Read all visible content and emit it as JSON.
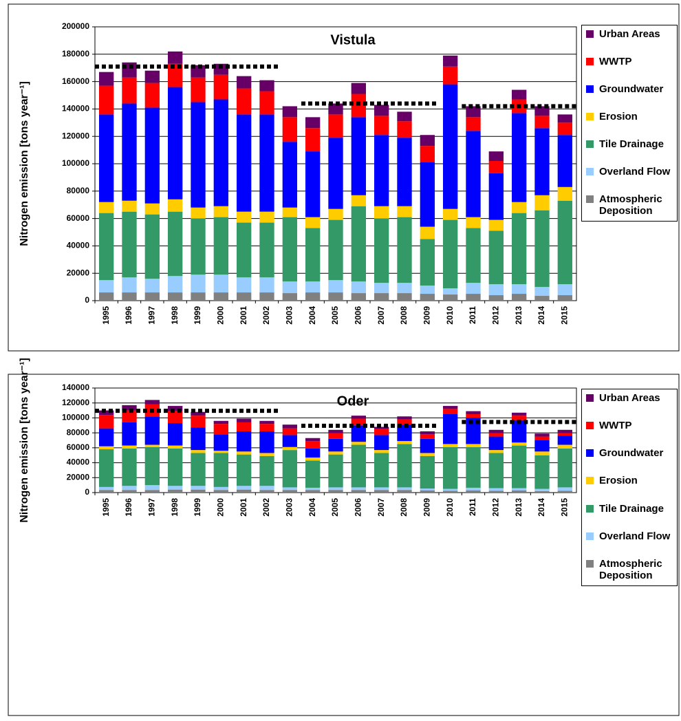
{
  "chart_data": [
    {
      "type": "bar",
      "stacked": true,
      "title": "Vistula",
      "y_label": "Nitrogen emission [tons year⁻¹]",
      "categories": [
        "1995",
        "1996",
        "1997",
        "1998",
        "1999",
        "2000",
        "2001",
        "2002",
        "2003",
        "2004",
        "2005",
        "2006",
        "2007",
        "2008",
        "2009",
        "2010",
        "2011",
        "2012",
        "2013",
        "2014",
        "2015"
      ],
      "ylim": [
        0,
        200000
      ],
      "yticks": [
        0,
        20000,
        40000,
        60000,
        80000,
        100000,
        120000,
        140000,
        160000,
        180000,
        200000
      ],
      "grid": true,
      "series": [
        {
          "name": "Atmospheric Deposition",
          "color": "#808080",
          "values": [
            6000,
            6000,
            6000,
            6000,
            6000,
            6000,
            6000,
            6000,
            5500,
            6000,
            6000,
            5500,
            5500,
            5500,
            5000,
            4500,
            5000,
            4000,
            5000,
            3500,
            4000
          ]
        },
        {
          "name": "Overland Flow",
          "color": "#99ccff",
          "values": [
            9000,
            11000,
            10000,
            12000,
            13000,
            13000,
            11000,
            11000,
            8500,
            8000,
            9000,
            8500,
            7500,
            7500,
            6000,
            4500,
            8000,
            8000,
            7000,
            6500,
            8000
          ]
        },
        {
          "name": "Tile Drainage",
          "color": "#339966",
          "values": [
            49000,
            48000,
            47000,
            47000,
            41000,
            42000,
            40000,
            40000,
            47000,
            39000,
            44000,
            55000,
            47000,
            48000,
            34000,
            50000,
            40000,
            39000,
            52000,
            56000,
            61000
          ]
        },
        {
          "name": "Erosion",
          "color": "#ffcc00",
          "values": [
            8000,
            8000,
            8000,
            9000,
            8000,
            8000,
            8000,
            8000,
            7000,
            8000,
            8000,
            8000,
            9000,
            8000,
            9000,
            8000,
            8000,
            8000,
            8000,
            11000,
            10000
          ]
        },
        {
          "name": "Groundwater",
          "color": "#0000ff",
          "values": [
            64000,
            71000,
            70000,
            82000,
            77000,
            78000,
            71000,
            71000,
            48000,
            48000,
            52000,
            57000,
            52000,
            50000,
            47000,
            91000,
            63000,
            34000,
            65000,
            49000,
            38000
          ]
        },
        {
          "name": "WWTP",
          "color": "#ff0000",
          "values": [
            21000,
            19000,
            18000,
            17000,
            18000,
            18000,
            19000,
            17000,
            18000,
            17000,
            17000,
            17000,
            14000,
            12000,
            12000,
            13000,
            10000,
            9000,
            10000,
            9000,
            9000
          ]
        },
        {
          "name": "Urban Areas",
          "color": "#660066",
          "values": [
            10000,
            11000,
            9000,
            9000,
            9000,
            8000,
            9000,
            8000,
            8000,
            8000,
            8000,
            8000,
            8000,
            7000,
            8000,
            8000,
            8000,
            7000,
            7000,
            7000,
            6000
          ]
        }
      ],
      "mean_line": {
        "color": "#000000",
        "values": [
          171000,
          171000,
          171000,
          171000,
          171000,
          171000,
          171000,
          171000,
          null,
          144000,
          144000,
          144000,
          144000,
          144000,
          144000,
          null,
          142000,
          142000,
          142000,
          142000,
          142000
        ]
      }
    },
    {
      "type": "bar",
      "stacked": true,
      "title": "Oder",
      "y_label": "Nitrogen emission [tons year⁻¹]",
      "categories": [
        "1995",
        "1996",
        "1997",
        "1998",
        "1999",
        "2000",
        "2001",
        "2002",
        "2003",
        "2004",
        "2005",
        "2006",
        "2007",
        "2008",
        "2009",
        "2010",
        "2011",
        "2012",
        "2013",
        "2014",
        "2015"
      ],
      "ylim": [
        0,
        140000
      ],
      "yticks": [
        0,
        20000,
        40000,
        60000,
        80000,
        100000,
        120000,
        140000
      ],
      "grid": true,
      "series": [
        {
          "name": "Atmospheric Deposition",
          "color": "#808080",
          "values": [
            3500,
            3500,
            3500,
            4000,
            4000,
            3500,
            4000,
            3500,
            3500,
            3500,
            3500,
            3500,
            3500,
            3500,
            3000,
            2500,
            3000,
            2500,
            3000,
            2000,
            2500
          ]
        },
        {
          "name": "Overland Flow",
          "color": "#99ccff",
          "values": [
            4000,
            5500,
            6500,
            5000,
            5000,
            4000,
            5000,
            5500,
            3500,
            3000,
            3500,
            3500,
            3500,
            3500,
            2500,
            2500,
            3500,
            3500,
            3000,
            3000,
            4500
          ]
        },
        {
          "name": "Tile Drainage",
          "color": "#339966",
          "values": [
            50500,
            50000,
            51000,
            50000,
            44000,
            45500,
            42000,
            40000,
            50000,
            36500,
            44000,
            57000,
            46000,
            58000,
            43500,
            56000,
            54500,
            47000,
            57000,
            45000,
            52000
          ]
        },
        {
          "name": "Erosion",
          "color": "#ffcc00",
          "values": [
            4000,
            4000,
            3000,
            4000,
            4000,
            3000,
            4000,
            4000,
            4000,
            4000,
            4000,
            4000,
            4000,
            4000,
            4000,
            4000,
            4000,
            4000,
            4000,
            5000,
            5000
          ]
        },
        {
          "name": "Groundwater",
          "color": "#0000ff",
          "values": [
            24000,
            31000,
            38000,
            30000,
            30000,
            22000,
            27000,
            29000,
            16000,
            12000,
            17000,
            22000,
            20000,
            22000,
            19000,
            40000,
            35000,
            18000,
            30000,
            15000,
            12000
          ]
        },
        {
          "name": "WWTP",
          "color": "#ff0000",
          "values": [
            18000,
            16000,
            16000,
            16000,
            16000,
            14000,
            12000,
            10000,
            9000,
            10000,
            8000,
            9000,
            8000,
            7000,
            6000,
            7000,
            5000,
            5000,
            6000,
            5000,
            4000
          ]
        },
        {
          "name": "Urban Areas",
          "color": "#660066",
          "values": [
            6000,
            7000,
            6000,
            7000,
            5000,
            4000,
            5000,
            4000,
            5000,
            4000,
            4000,
            4000,
            3000,
            4000,
            4000,
            4000,
            4000,
            4000,
            4000,
            4000,
            4000
          ]
        }
      ],
      "mean_line": {
        "color": "#000000",
        "values": [
          109500,
          109500,
          109500,
          109500,
          109500,
          109500,
          109500,
          109500,
          null,
          89500,
          89500,
          89500,
          89500,
          89500,
          89500,
          null,
          94500,
          94500,
          94500,
          94500,
          94500
        ]
      }
    }
  ]
}
